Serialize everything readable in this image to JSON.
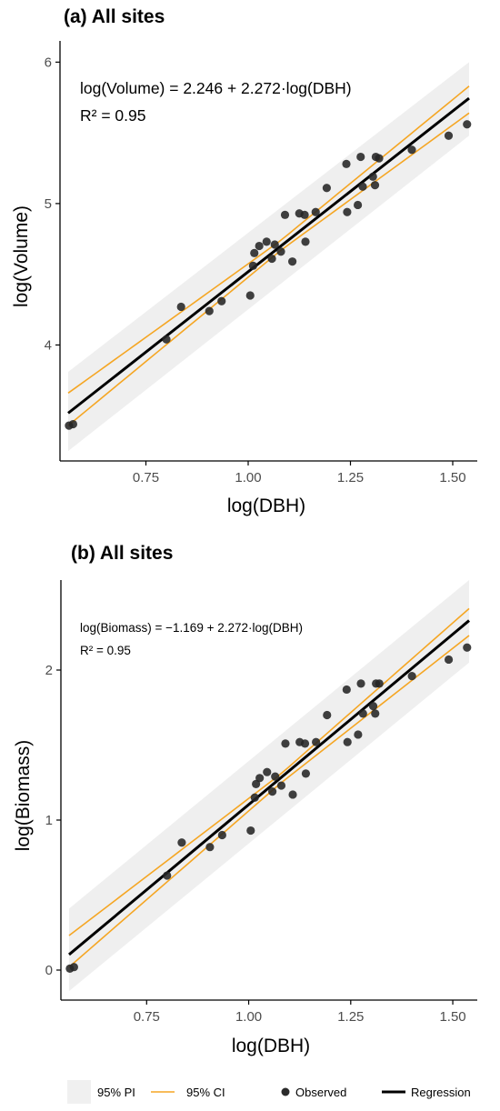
{
  "chart_data": [
    {
      "type": "scatter",
      "title": "(a) All sites",
      "xlabel": "log(DBH)",
      "ylabel": "log(Volume)",
      "xlim": [
        0.54,
        1.56
      ],
      "ylim": [
        3.18,
        6.15
      ],
      "x_ticks": [
        0.75,
        1.0,
        1.25,
        1.5
      ],
      "x_tick_labels": [
        "0.75",
        "1.00",
        "1.25",
        "1.50"
      ],
      "y_ticks": [
        4,
        5,
        6
      ],
      "y_tick_labels": [
        "4",
        "5",
        "6"
      ],
      "annotations": [
        "log(Volume) = 2.246 + 2.272·log(DBH)",
        "R² = 0.95"
      ],
      "regression": {
        "intercept": 2.246,
        "slope": 2.272
      },
      "ci_bounds": [
        {
          "x": 0.56,
          "lower": 3.43,
          "upper": 3.66
        },
        {
          "x": 1.08,
          "lower": 4.67,
          "upper": 4.74
        },
        {
          "x": 1.54,
          "lower": 5.64,
          "upper": 5.83
        }
      ],
      "pi_bounds": [
        {
          "x": 0.56,
          "lower": 3.25,
          "upper": 3.81
        },
        {
          "x": 1.54,
          "lower": 5.48,
          "upper": 6.0
        }
      ],
      "points": [
        {
          "x": 0.562,
          "y": 3.43
        },
        {
          "x": 0.572,
          "y": 3.44
        },
        {
          "x": 0.8,
          "y": 4.04
        },
        {
          "x": 0.836,
          "y": 4.27
        },
        {
          "x": 0.905,
          "y": 4.24
        },
        {
          "x": 0.935,
          "y": 4.31
        },
        {
          "x": 1.005,
          "y": 4.35
        },
        {
          "x": 1.015,
          "y": 4.65
        },
        {
          "x": 1.027,
          "y": 4.7
        },
        {
          "x": 1.012,
          "y": 4.56
        },
        {
          "x": 1.045,
          "y": 4.73
        },
        {
          "x": 1.058,
          "y": 4.61
        },
        {
          "x": 1.065,
          "y": 4.71
        },
        {
          "x": 1.08,
          "y": 4.66
        },
        {
          "x": 1.09,
          "y": 4.92
        },
        {
          "x": 1.108,
          "y": 4.59
        },
        {
          "x": 1.125,
          "y": 4.93
        },
        {
          "x": 1.138,
          "y": 4.92
        },
        {
          "x": 1.14,
          "y": 4.73
        },
        {
          "x": 1.165,
          "y": 4.94
        },
        {
          "x": 1.192,
          "y": 5.11
        },
        {
          "x": 1.24,
          "y": 5.28
        },
        {
          "x": 1.242,
          "y": 4.94
        },
        {
          "x": 1.268,
          "y": 4.99
        },
        {
          "x": 1.275,
          "y": 5.33
        },
        {
          "x": 1.28,
          "y": 5.12
        },
        {
          "x": 1.305,
          "y": 5.19
        },
        {
          "x": 1.312,
          "y": 5.33
        },
        {
          "x": 1.32,
          "y": 5.32
        },
        {
          "x": 1.31,
          "y": 5.13
        },
        {
          "x": 1.4,
          "y": 5.38
        },
        {
          "x": 1.49,
          "y": 5.48
        },
        {
          "x": 1.535,
          "y": 5.56
        }
      ]
    },
    {
      "type": "scatter",
      "title": "(b) All sites",
      "xlabel": "log(DBH)",
      "ylabel": "log(Biomass)",
      "xlim": [
        0.54,
        1.56
      ],
      "ylim": [
        -0.2,
        2.6
      ],
      "x_ticks": [
        0.75,
        1.0,
        1.25,
        1.5
      ],
      "x_tick_labels": [
        "0.75",
        "1.00",
        "1.25",
        "1.50"
      ],
      "y_ticks": [
        0,
        1,
        2
      ],
      "y_tick_labels": [
        "0",
        "1",
        "2"
      ],
      "annotations": [
        "log(Biomass) = −1.169 + 2.272·log(DBH)",
        "R² = 0.95"
      ],
      "regression": {
        "intercept": -1.169,
        "slope": 2.272
      },
      "ci_bounds": [
        {
          "x": 0.56,
          "lower": 0.02,
          "upper": 0.23
        },
        {
          "x": 1.08,
          "lower": 1.25,
          "upper": 1.31
        },
        {
          "x": 1.54,
          "lower": 2.23,
          "upper": 2.41
        }
      ],
      "pi_bounds": [
        {
          "x": 0.56,
          "lower": -0.14,
          "upper": 0.41
        },
        {
          "x": 1.54,
          "lower": 2.05,
          "upper": 2.6
        }
      ],
      "points": [
        {
          "x": 0.562,
          "y": 0.01
        },
        {
          "x": 0.572,
          "y": 0.02
        },
        {
          "x": 0.8,
          "y": 0.63
        },
        {
          "x": 0.836,
          "y": 0.85
        },
        {
          "x": 0.905,
          "y": 0.82
        },
        {
          "x": 0.935,
          "y": 0.9
        },
        {
          "x": 1.005,
          "y": 0.93
        },
        {
          "x": 1.015,
          "y": 1.15
        },
        {
          "x": 1.018,
          "y": 1.24
        },
        {
          "x": 1.027,
          "y": 1.28
        },
        {
          "x": 1.045,
          "y": 1.32
        },
        {
          "x": 1.058,
          "y": 1.19
        },
        {
          "x": 1.065,
          "y": 1.29
        },
        {
          "x": 1.08,
          "y": 1.23
        },
        {
          "x": 1.09,
          "y": 1.51
        },
        {
          "x": 1.108,
          "y": 1.17
        },
        {
          "x": 1.125,
          "y": 1.52
        },
        {
          "x": 1.138,
          "y": 1.51
        },
        {
          "x": 1.14,
          "y": 1.31
        },
        {
          "x": 1.165,
          "y": 1.52
        },
        {
          "x": 1.192,
          "y": 1.7
        },
        {
          "x": 1.24,
          "y": 1.87
        },
        {
          "x": 1.242,
          "y": 1.52
        },
        {
          "x": 1.268,
          "y": 1.57
        },
        {
          "x": 1.275,
          "y": 1.91
        },
        {
          "x": 1.28,
          "y": 1.71
        },
        {
          "x": 1.305,
          "y": 1.76
        },
        {
          "x": 1.312,
          "y": 1.91
        },
        {
          "x": 1.32,
          "y": 1.91
        },
        {
          "x": 1.31,
          "y": 1.71
        },
        {
          "x": 1.4,
          "y": 1.96
        },
        {
          "x": 1.49,
          "y": 2.07
        },
        {
          "x": 1.535,
          "y": 2.15
        }
      ]
    }
  ],
  "legend": {
    "position": "bottom",
    "items": [
      {
        "label": "95% PI",
        "kind": "band",
        "color": "#f0f0f0"
      },
      {
        "label": "95% CI",
        "kind": "line",
        "color": "#f5a623"
      },
      {
        "label": "Observed",
        "kind": "point",
        "color": "#2b2b2b"
      },
      {
        "label": "Regression",
        "kind": "line",
        "color": "#000000"
      }
    ]
  },
  "colors": {
    "pi_band": "#efefef",
    "ci_line": "#f5a623",
    "regression_line": "#000000",
    "point": "#262626",
    "axis": "#000000",
    "tick_label": "#4d4d4d"
  }
}
